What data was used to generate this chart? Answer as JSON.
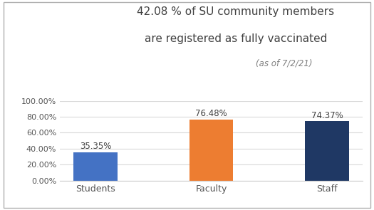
{
  "categories": [
    "Students",
    "Faculty",
    "Staff"
  ],
  "values": [
    35.35,
    76.48,
    74.37
  ],
  "bar_colors": [
    "#4472c4",
    "#ed7d31",
    "#1f3864"
  ],
  "value_labels": [
    "35.35%",
    "76.48%",
    "74.37%"
  ],
  "title_line1": "42.08 % of SU community members",
  "title_line2": "are registered as fully vaccinated",
  "title_line3": "(as of 7/2/21)",
  "ylim": [
    0,
    100
  ],
  "yticks": [
    0,
    20,
    40,
    60,
    80,
    100
  ],
  "ytick_labels": [
    "0.00%",
    "20.00%",
    "40.00%",
    "60.00%",
    "80.00%",
    "100.00%"
  ],
  "background_color": "#ffffff",
  "title_fontsize": 11,
  "subtitle_fontsize": 8.5,
  "label_fontsize": 9,
  "tick_fontsize": 8,
  "bar_label_fontsize": 8.5
}
